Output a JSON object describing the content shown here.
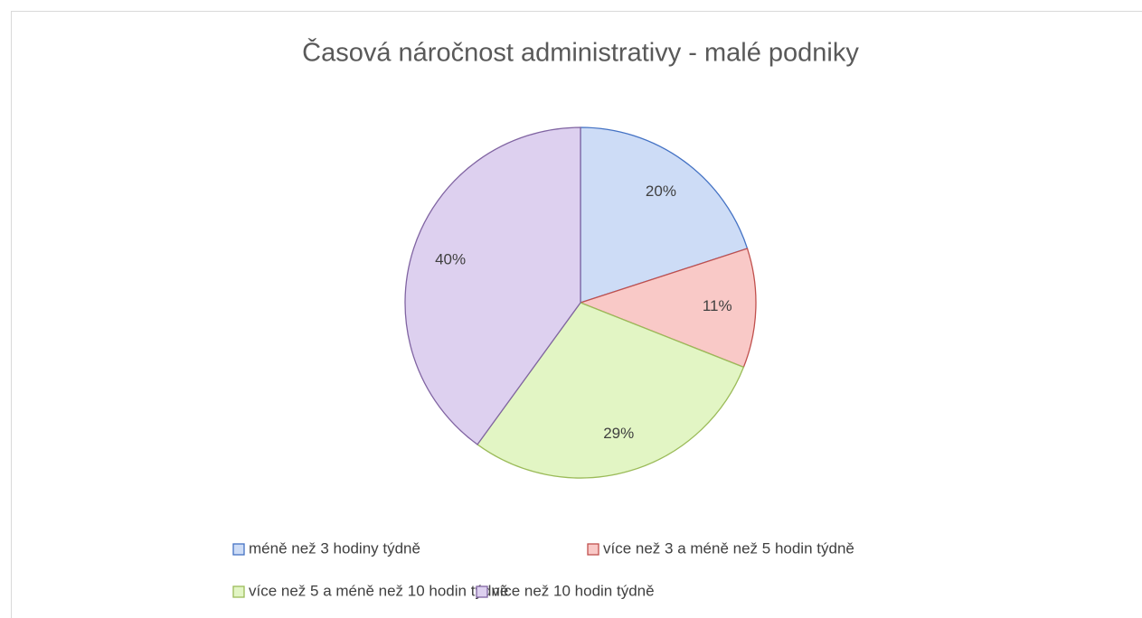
{
  "chart_data": {
    "type": "pie",
    "title": "Časová náročnost administrativy - malé podniky",
    "categories": [
      "méně než 3 hodiny týdně",
      "více než 3 a méně než 5 hodin týdně",
      "více než 5 a méně než 10 hodin týdně",
      "více než 10 hodin týdně"
    ],
    "values": [
      20,
      11,
      29,
      40
    ],
    "value_labels": [
      "20%",
      "11%",
      "29%",
      "40%"
    ],
    "colors": [
      "#cddcf6",
      "#f9c9c7",
      "#e2f5c4",
      "#ddd0ef"
    ],
    "edge_colors": [
      "#4472c4",
      "#c0504d",
      "#9bbb59",
      "#8064a2"
    ],
    "legend": "bottom"
  }
}
